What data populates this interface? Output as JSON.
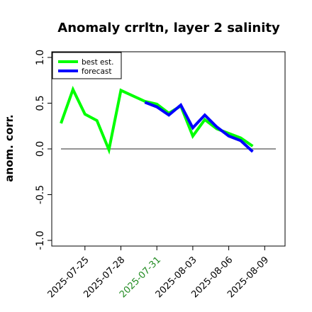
{
  "chart_data": {
    "type": "line",
    "title": "Anomaly crrltn, layer 2 salinity",
    "ylabel": "anom. corr.",
    "xlabel": "",
    "ylim": [
      -1.0,
      1.0
    ],
    "yticks": [
      -1.0,
      -0.5,
      0.0,
      0.5,
      1.0
    ],
    "ytick_labels": [
      "-1.0",
      "-0.5",
      "0.0",
      "0.5",
      "1.0"
    ],
    "x": [
      "2025-07-24",
      "2025-07-25",
      "2025-07-26",
      "2025-07-27",
      "2025-07-28",
      "2025-07-29",
      "2025-07-30",
      "2025-07-31",
      "2025-08-01",
      "2025-08-02",
      "2025-08-03",
      "2025-08-04",
      "2025-08-05",
      "2025-08-06",
      "2025-08-07",
      "2025-08-08",
      "2025-08-09"
    ],
    "xtick_labels": [
      "2025-07-25",
      "2025-07-28",
      "2025-07-31",
      "2025-08-03",
      "2025-08-06",
      "2025-08-09"
    ],
    "xtick_highlight": "2025-07-31",
    "zero_line": 0.0,
    "series": [
      {
        "name": "best est.",
        "color": "#00ff00",
        "values": [
          0.28,
          0.65,
          0.38,
          0.31,
          -0.01,
          0.64,
          0.58,
          0.52,
          0.49,
          0.39,
          0.47,
          0.14,
          0.32,
          0.22,
          0.17,
          0.12,
          0.03
        ]
      },
      {
        "name": "forecast",
        "color": "#0000ff",
        "values": [
          null,
          null,
          null,
          null,
          null,
          null,
          null,
          0.51,
          0.46,
          0.37,
          0.48,
          0.23,
          0.37,
          0.24,
          0.14,
          0.09,
          -0.03
        ]
      }
    ],
    "legend_position": "top-left",
    "grid": false,
    "colors": {
      "highlight_tick": "#228b22",
      "zero_line": "#555555"
    }
  }
}
